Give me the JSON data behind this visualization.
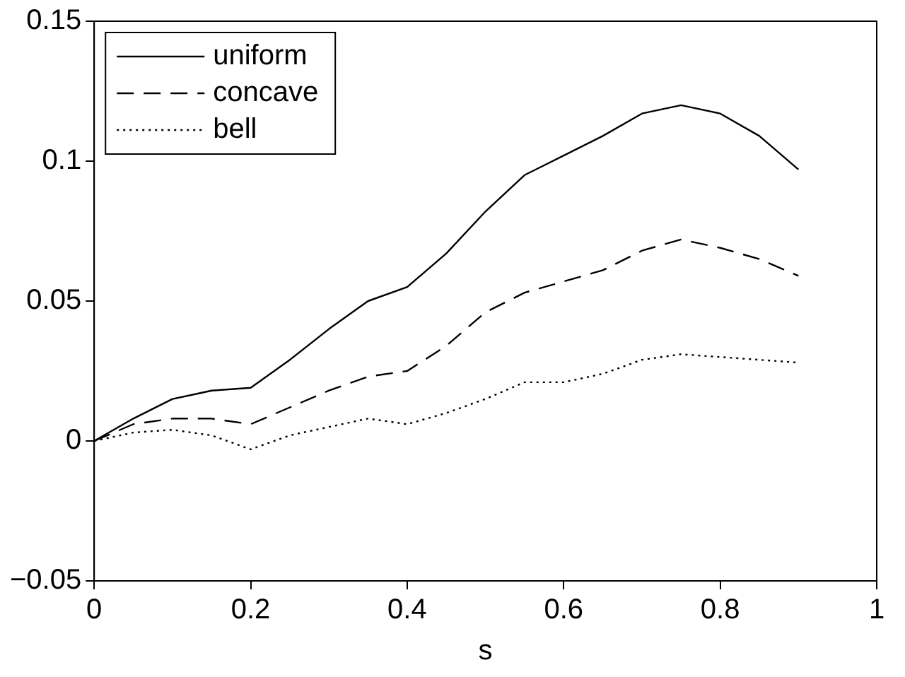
{
  "chart_data": {
    "type": "line",
    "xlabel": "s",
    "x": [
      0,
      0.05,
      0.1,
      0.15,
      0.2,
      0.25,
      0.3,
      0.35,
      0.4,
      0.45,
      0.5,
      0.55,
      0.6,
      0.65,
      0.7,
      0.75,
      0.8,
      0.85,
      0.9
    ],
    "series": [
      {
        "name": "uniform",
        "color": "#000000",
        "line_style": "solid",
        "values": [
          0,
          0.008,
          0.015,
          0.018,
          0.019,
          0.029,
          0.04,
          0.05,
          0.055,
          0.067,
          0.082,
          0.095,
          0.102,
          0.109,
          0.117,
          0.12,
          0.117,
          0.109,
          0.097
        ]
      },
      {
        "name": "concave",
        "color": "#000000",
        "line_style": "dashed",
        "values": [
          0,
          0.006,
          0.008,
          0.008,
          0.006,
          0.012,
          0.018,
          0.023,
          0.025,
          0.034,
          0.046,
          0.053,
          0.057,
          0.061,
          0.068,
          0.072,
          0.069,
          0.065,
          0.059
        ]
      },
      {
        "name": "bell",
        "color": "#000000",
        "line_style": "dotted",
        "values": [
          0,
          0.003,
          0.004,
          0.002,
          -0.003,
          0.002,
          0.005,
          0.008,
          0.006,
          0.01,
          0.015,
          0.021,
          0.021,
          0.024,
          0.029,
          0.031,
          0.03,
          0.029,
          0.028
        ]
      }
    ],
    "xlim": [
      0,
      1
    ],
    "xticks": [
      0,
      0.2,
      0.4,
      0.6,
      0.8,
      1
    ],
    "ylim": [
      -0.05,
      0.15
    ],
    "yticks": [
      {
        "value": -0.05,
        "label": "−0.05"
      },
      0,
      0.05,
      0.1,
      0.15
    ],
    "grid": false,
    "legend": "top left",
    "marker": "none"
  }
}
